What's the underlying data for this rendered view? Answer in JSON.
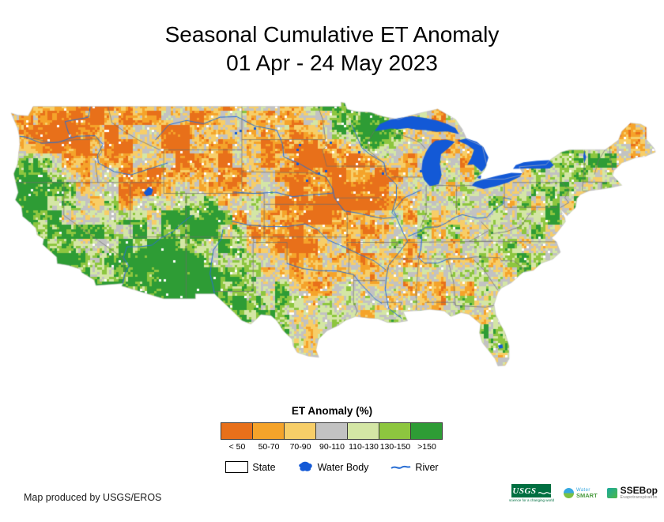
{
  "title": {
    "line1": "Seasonal Cumulative ET Anomaly",
    "line2": "01 Apr - 24 May 2023"
  },
  "legend": {
    "title": "ET Anomaly (%)",
    "classes": [
      {
        "label": "< 50",
        "color": "#E8701A"
      },
      {
        "label": "50-70",
        "color": "#F5A32A"
      },
      {
        "label": "70-90",
        "color": "#F7CE68"
      },
      {
        "label": "90-110",
        "color": "#C2C2C2"
      },
      {
        "label": "110-130",
        "color": "#D4E6A5"
      },
      {
        "label": "130-150",
        "color": "#8DC63F"
      },
      {
        "label": ">150",
        "color": "#2E9C35"
      }
    ],
    "symbols": [
      {
        "label": "State"
      },
      {
        "label": "Water Body"
      },
      {
        "label": "River"
      }
    ]
  },
  "map_colors": {
    "water": "#1359D6",
    "river": "#2A6FD4",
    "state_line": "#6E6E6E"
  },
  "footer": {
    "credit": "Map produced by USGS/EROS"
  },
  "logos": {
    "usgs": {
      "text": "USGS",
      "tagline": "science for a changing world"
    },
    "watersmart": {
      "top": "Water",
      "bottom": "SMART"
    },
    "ssebop": {
      "text": "SSEBop",
      "sub": "Evapotranspiration"
    }
  }
}
